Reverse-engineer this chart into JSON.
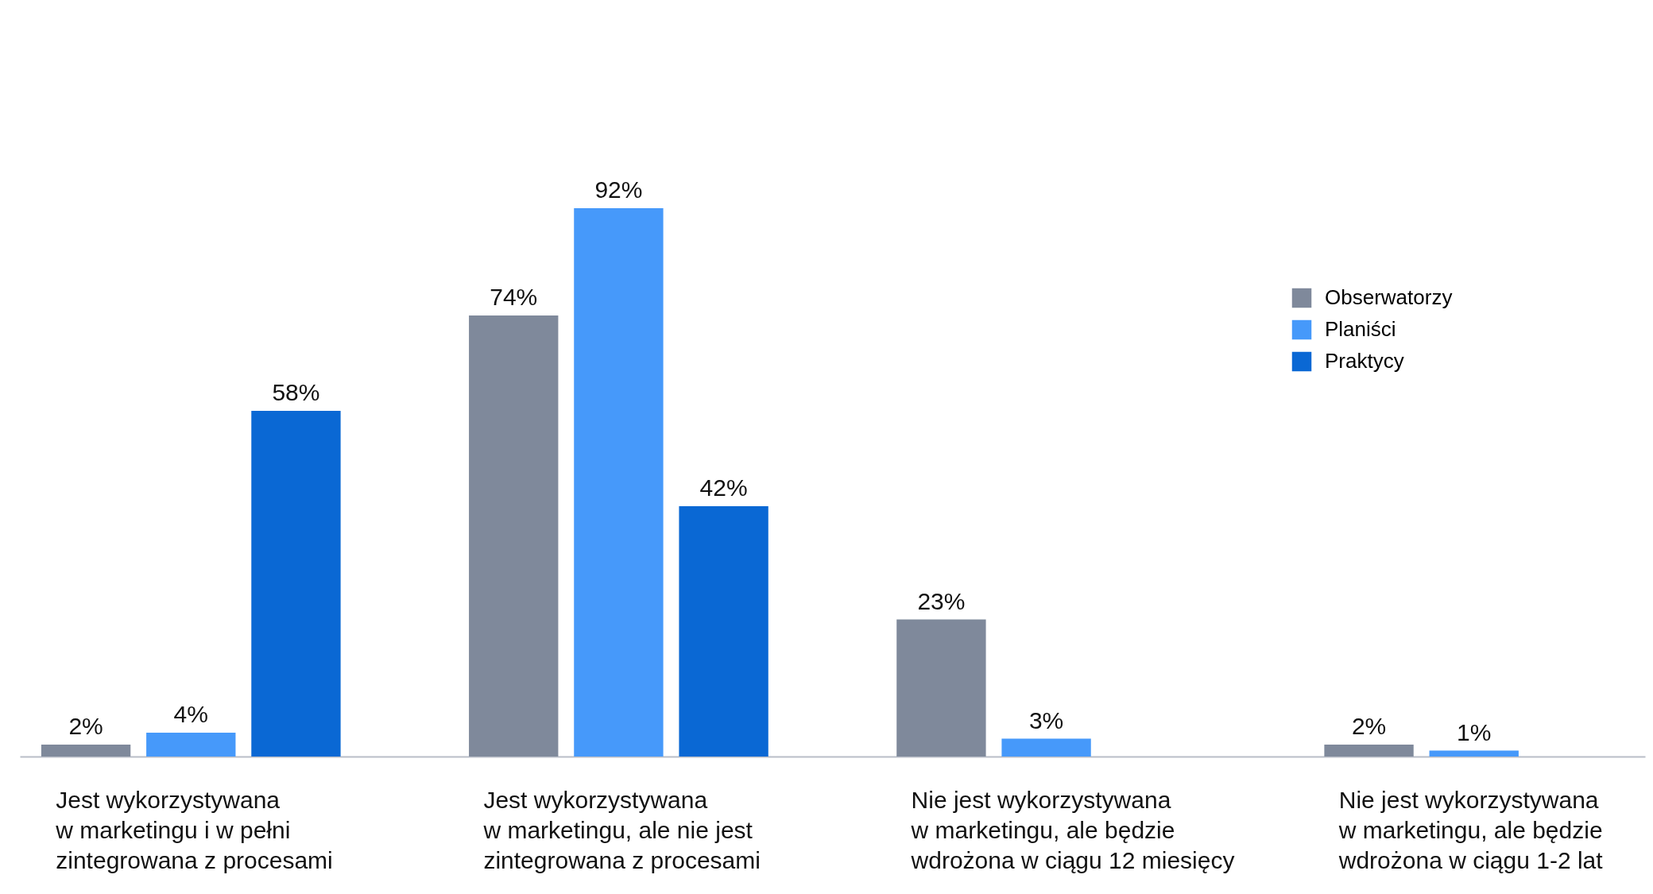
{
  "chart_data": {
    "type": "bar",
    "categories": [
      "Jest wykorzystywana\nw marketingu i w pełni\nzintegrowana z procesami",
      "Jest wykorzystywana\nw marketingu, ale nie jest\nzintegrowana z procesami",
      "Nie jest wykorzystywana\nw marketingu, ale będzie\nwdrożona w ciągu 12 miesięcy",
      "Nie jest wykorzystywana\nw marketingu, ale będzie\nwdrożona w ciągu 1-2 lat"
    ],
    "series": [
      {
        "name": "Obserwatorzy",
        "color": "#7f899b",
        "values": [
          2,
          74,
          23,
          2
        ],
        "value_labels": [
          "2%",
          "74%",
          "23%",
          "2%"
        ]
      },
      {
        "name": "Planiści",
        "color": "#4699fa",
        "values": [
          4,
          92,
          3,
          1
        ],
        "value_labels": [
          "4%",
          "92%",
          "3%",
          "1%"
        ]
      },
      {
        "name": "Praktycy",
        "color": "#0a68d4",
        "values": [
          58,
          42,
          null,
          null
        ],
        "value_labels": [
          "58%",
          "42%",
          null,
          null
        ]
      }
    ],
    "legend": "top right"
  }
}
